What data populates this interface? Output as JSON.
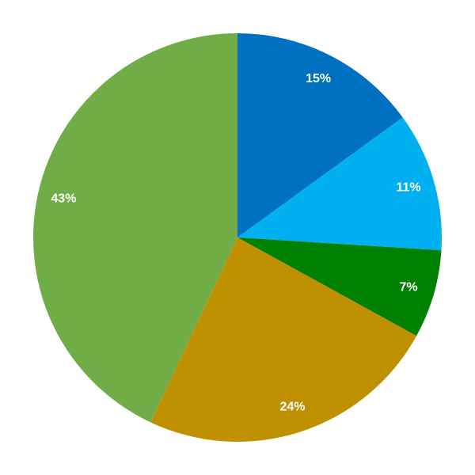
{
  "chart_data": {
    "type": "pie",
    "start_angle_deg": 0,
    "direction": "clockwise",
    "legend": "none",
    "slices": [
      {
        "label": "15%",
        "value": 15,
        "color": "#0070C0"
      },
      {
        "label": "11%",
        "value": 11,
        "color": "#00B0F0"
      },
      {
        "label": "7%",
        "value": 7,
        "color": "#008000"
      },
      {
        "label": "24%",
        "value": 24,
        "color": "#BF9000"
      },
      {
        "label": "43%",
        "value": 43,
        "color": "#70AD47"
      }
    ]
  }
}
